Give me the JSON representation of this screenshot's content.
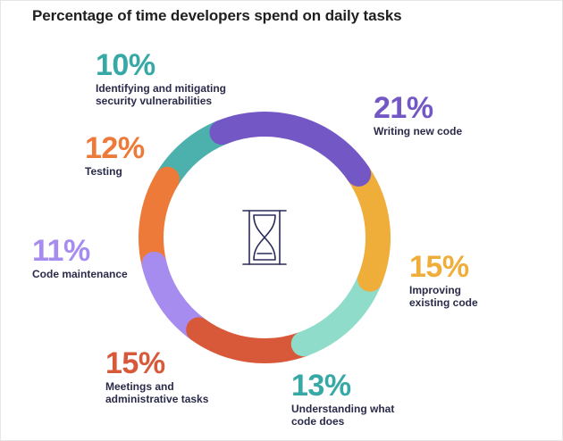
{
  "chart_data": {
    "type": "pie",
    "title": "Percentage of time developers spend on daily tasks",
    "slices": [
      {
        "label": "Writing new code",
        "value": 21,
        "display": "21%",
        "color": "#7357c5"
      },
      {
        "label": "Improving\nexisting code",
        "value": 15,
        "display": "15%",
        "color": "#efad3a"
      },
      {
        "label": "Understanding what\ncode does",
        "value": 13,
        "display": "13%",
        "color": "#8fdccb"
      },
      {
        "label": "Meetings and\nadministrative tasks",
        "value": 15,
        "display": "15%",
        "color": "#d8583a"
      },
      {
        "label": "Code maintenance",
        "value": 11,
        "display": "11%",
        "color": "#a78cf0"
      },
      {
        "label": "Testing",
        "value": 12,
        "display": "12%",
        "color": "#ee7a3a"
      },
      {
        "label": "Identifying and mitigating\nsecurity vulnerabilities",
        "value": 10,
        "display": "10%",
        "color": "#4cb0ac"
      }
    ]
  },
  "colors": {
    "label_text": "#2a2a4a",
    "pct": [
      "#7357c5",
      "#efad3a",
      "#36a8a6",
      "#d8583a",
      "#a78cf0",
      "#ee7a3a",
      "#36a8a6"
    ]
  },
  "center_icon": "hourglass-icon"
}
